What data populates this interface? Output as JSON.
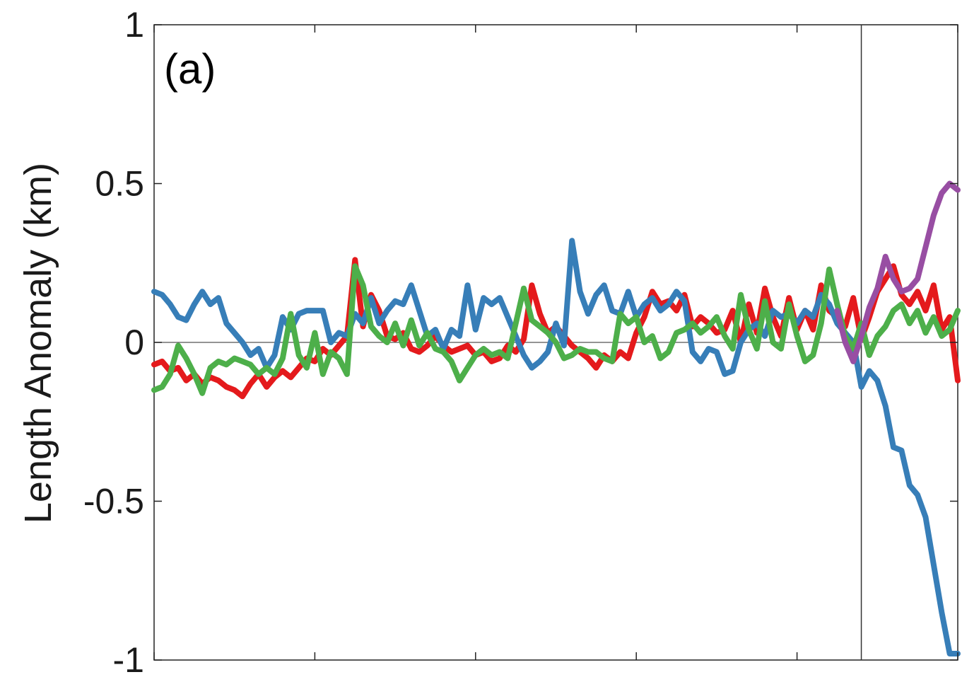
{
  "chart_data": {
    "type": "line",
    "panel_label": "(a)",
    "title": "",
    "xlabel": "",
    "ylabel": "Length Anomaly (km)",
    "ylim": [
      -1,
      1
    ],
    "yticks": [
      -1,
      -0.5,
      0,
      0.5,
      1
    ],
    "ytick_labels": [
      "-1",
      "-0.5",
      "0",
      "0.5",
      "1"
    ],
    "xlim": [
      0,
      500
    ],
    "xticks": [
      0,
      100,
      200,
      300,
      400,
      500
    ],
    "xtick_labels": [
      "",
      "",
      "",
      "",
      "",
      ""
    ],
    "grid": false,
    "legend": "none",
    "reference_lines": [
      {
        "orientation": "horizontal",
        "value": 0,
        "color": "#555555"
      },
      {
        "orientation": "vertical",
        "value": 440,
        "color": "#333333"
      }
    ],
    "series": [
      {
        "color": "#e41a1c",
        "x": [
          0,
          5,
          10,
          15,
          20,
          25,
          30,
          35,
          40,
          45,
          50,
          55,
          60,
          65,
          70,
          75,
          80,
          85,
          90,
          95,
          100,
          105,
          110,
          115,
          120,
          125,
          130,
          135,
          140,
          145,
          150,
          155,
          160,
          165,
          170,
          175,
          180,
          185,
          190,
          195,
          200,
          205,
          210,
          215,
          220,
          225,
          230,
          235,
          240,
          245,
          250,
          255,
          260,
          265,
          270,
          275,
          280,
          285,
          290,
          295,
          300,
          305,
          310,
          315,
          320,
          325,
          330,
          335,
          340,
          345,
          350,
          355,
          360,
          365,
          370,
          375,
          380,
          385,
          390,
          395,
          400,
          405,
          410,
          415,
          420,
          425,
          430,
          435,
          440,
          445,
          450,
          455,
          460,
          465,
          470,
          475,
          480,
          485,
          490,
          495,
          500
        ],
        "values": [
          -0.07,
          -0.06,
          -0.09,
          -0.08,
          -0.12,
          -0.1,
          -0.13,
          -0.11,
          -0.12,
          -0.14,
          -0.15,
          -0.17,
          -0.13,
          -0.1,
          -0.14,
          -0.11,
          -0.09,
          -0.11,
          -0.08,
          -0.05,
          -0.06,
          -0.02,
          -0.04,
          -0.01,
          0.02,
          0.26,
          0.05,
          0.15,
          0.1,
          0.02,
          0.01,
          0.03,
          -0.02,
          -0.03,
          -0.01,
          0.02,
          -0.01,
          -0.03,
          -0.02,
          -0.01,
          -0.04,
          -0.03,
          -0.06,
          -0.05,
          -0.01,
          -0.03,
          0.01,
          0.18,
          0.09,
          0.03,
          0.05,
          0.02,
          -0.01,
          -0.03,
          -0.05,
          -0.08,
          -0.04,
          -0.06,
          -0.03,
          -0.05,
          0.03,
          0.08,
          0.16,
          0.12,
          0.13,
          0.1,
          0.15,
          0.05,
          0.08,
          0.06,
          0.03,
          0.04,
          0.1,
          0.0,
          0.12,
          0.03,
          0.17,
          0.08,
          0.02,
          0.14,
          0.04,
          0.1,
          0.04,
          0.18,
          0.1,
          0.08,
          0.05,
          0.14,
          0.01,
          0.08,
          0.16,
          0.2,
          0.24,
          0.15,
          0.12,
          0.16,
          0.1,
          0.18,
          0.04,
          0.08,
          -0.12
        ]
      },
      {
        "color": "#377eb8",
        "x": [
          0,
          5,
          10,
          15,
          20,
          25,
          30,
          35,
          40,
          45,
          50,
          55,
          60,
          65,
          70,
          75,
          80,
          85,
          90,
          95,
          100,
          105,
          110,
          115,
          120,
          125,
          130,
          135,
          140,
          145,
          150,
          155,
          160,
          165,
          170,
          175,
          180,
          185,
          190,
          195,
          200,
          205,
          210,
          215,
          220,
          225,
          230,
          235,
          240,
          245,
          250,
          255,
          260,
          265,
          270,
          275,
          280,
          285,
          290,
          295,
          300,
          305,
          310,
          315,
          320,
          325,
          330,
          335,
          340,
          345,
          350,
          355,
          360,
          365,
          370,
          375,
          380,
          385,
          390,
          395,
          400,
          405,
          410,
          415,
          420,
          425,
          430,
          435,
          440,
          445,
          450,
          455,
          460,
          465,
          470,
          475,
          480,
          485,
          490,
          495,
          500
        ],
        "values": [
          0.16,
          0.15,
          0.12,
          0.08,
          0.07,
          0.12,
          0.16,
          0.12,
          0.14,
          0.06,
          0.03,
          0.0,
          -0.04,
          -0.02,
          -0.08,
          -0.04,
          0.08,
          0.04,
          0.09,
          0.1,
          0.1,
          0.1,
          0.0,
          0.03,
          0.02,
          0.09,
          0.06,
          0.14,
          0.06,
          0.1,
          0.13,
          0.12,
          0.18,
          0.1,
          0.02,
          0.04,
          -0.02,
          0.04,
          0.02,
          0.18,
          0.04,
          0.14,
          0.12,
          0.14,
          0.08,
          0.02,
          -0.04,
          -0.08,
          -0.06,
          -0.03,
          0.06,
          -0.01,
          0.32,
          0.16,
          0.09,
          0.15,
          0.18,
          0.1,
          0.09,
          0.16,
          0.08,
          0.12,
          0.14,
          0.1,
          0.12,
          0.16,
          0.13,
          -0.03,
          -0.06,
          -0.02,
          -0.03,
          -0.1,
          -0.09,
          0.0,
          0.04,
          0.06,
          0.02,
          0.1,
          0.08,
          0.09,
          0.06,
          0.1,
          0.08,
          0.15,
          0.12,
          0.06,
          0.03,
          0.0,
          -0.14,
          -0.09,
          -0.12,
          -0.2,
          -0.33,
          -0.34,
          -0.45,
          -0.48,
          -0.55,
          -0.7,
          -0.85,
          -0.98,
          -0.98
        ]
      },
      {
        "color": "#4daf4a",
        "x": [
          0,
          5,
          10,
          15,
          20,
          25,
          30,
          35,
          40,
          45,
          50,
          55,
          60,
          65,
          70,
          75,
          80,
          85,
          90,
          95,
          100,
          105,
          110,
          115,
          120,
          125,
          130,
          135,
          140,
          145,
          150,
          155,
          160,
          165,
          170,
          175,
          180,
          185,
          190,
          195,
          200,
          205,
          210,
          215,
          220,
          225,
          230,
          235,
          240,
          245,
          250,
          255,
          260,
          265,
          270,
          275,
          280,
          285,
          290,
          295,
          300,
          305,
          310,
          315,
          320,
          325,
          330,
          335,
          340,
          345,
          350,
          355,
          360,
          365,
          370,
          375,
          380,
          385,
          390,
          395,
          400,
          405,
          410,
          415,
          420,
          425,
          430,
          435,
          440,
          445,
          450,
          455,
          460,
          465,
          470,
          475,
          480,
          485,
          490,
          495,
          500
        ],
        "values": [
          -0.15,
          -0.14,
          -0.1,
          -0.01,
          -0.05,
          -0.1,
          -0.16,
          -0.08,
          -0.06,
          -0.07,
          -0.05,
          -0.06,
          -0.07,
          -0.1,
          -0.08,
          -0.1,
          -0.05,
          0.09,
          -0.04,
          -0.08,
          0.03,
          -0.1,
          -0.03,
          -0.05,
          -0.1,
          0.24,
          0.18,
          0.05,
          0.02,
          0.0,
          0.06,
          -0.01,
          0.07,
          -0.01,
          0.03,
          -0.02,
          -0.03,
          -0.06,
          -0.12,
          -0.08,
          -0.04,
          -0.02,
          -0.04,
          -0.03,
          -0.05,
          0.06,
          0.17,
          0.07,
          0.05,
          0.03,
          0.0,
          -0.05,
          -0.04,
          -0.02,
          -0.03,
          -0.03,
          -0.05,
          -0.06,
          0.09,
          0.06,
          0.08,
          0.0,
          0.02,
          -0.05,
          -0.03,
          0.03,
          0.04,
          0.06,
          0.03,
          0.05,
          0.08,
          0.02,
          -0.02,
          0.15,
          0.04,
          -0.02,
          0.13,
          0.0,
          -0.02,
          0.12,
          0.02,
          -0.06,
          -0.04,
          0.06,
          0.23,
          0.12,
          0.02,
          -0.02,
          0.06,
          -0.04,
          0.02,
          0.05,
          0.1,
          0.12,
          0.06,
          0.1,
          0.03,
          0.08,
          0.02,
          0.04,
          0.1
        ]
      },
      {
        "color": "#984ea3",
        "x": [
          425,
          430,
          435,
          440,
          445,
          450,
          455,
          460,
          465,
          470,
          475,
          480,
          485,
          490,
          495,
          500
        ],
        "values": [
          0.1,
          0.0,
          -0.06,
          0.02,
          0.11,
          0.17,
          0.27,
          0.2,
          0.16,
          0.17,
          0.2,
          0.3,
          0.4,
          0.47,
          0.5,
          0.48
        ]
      }
    ]
  }
}
